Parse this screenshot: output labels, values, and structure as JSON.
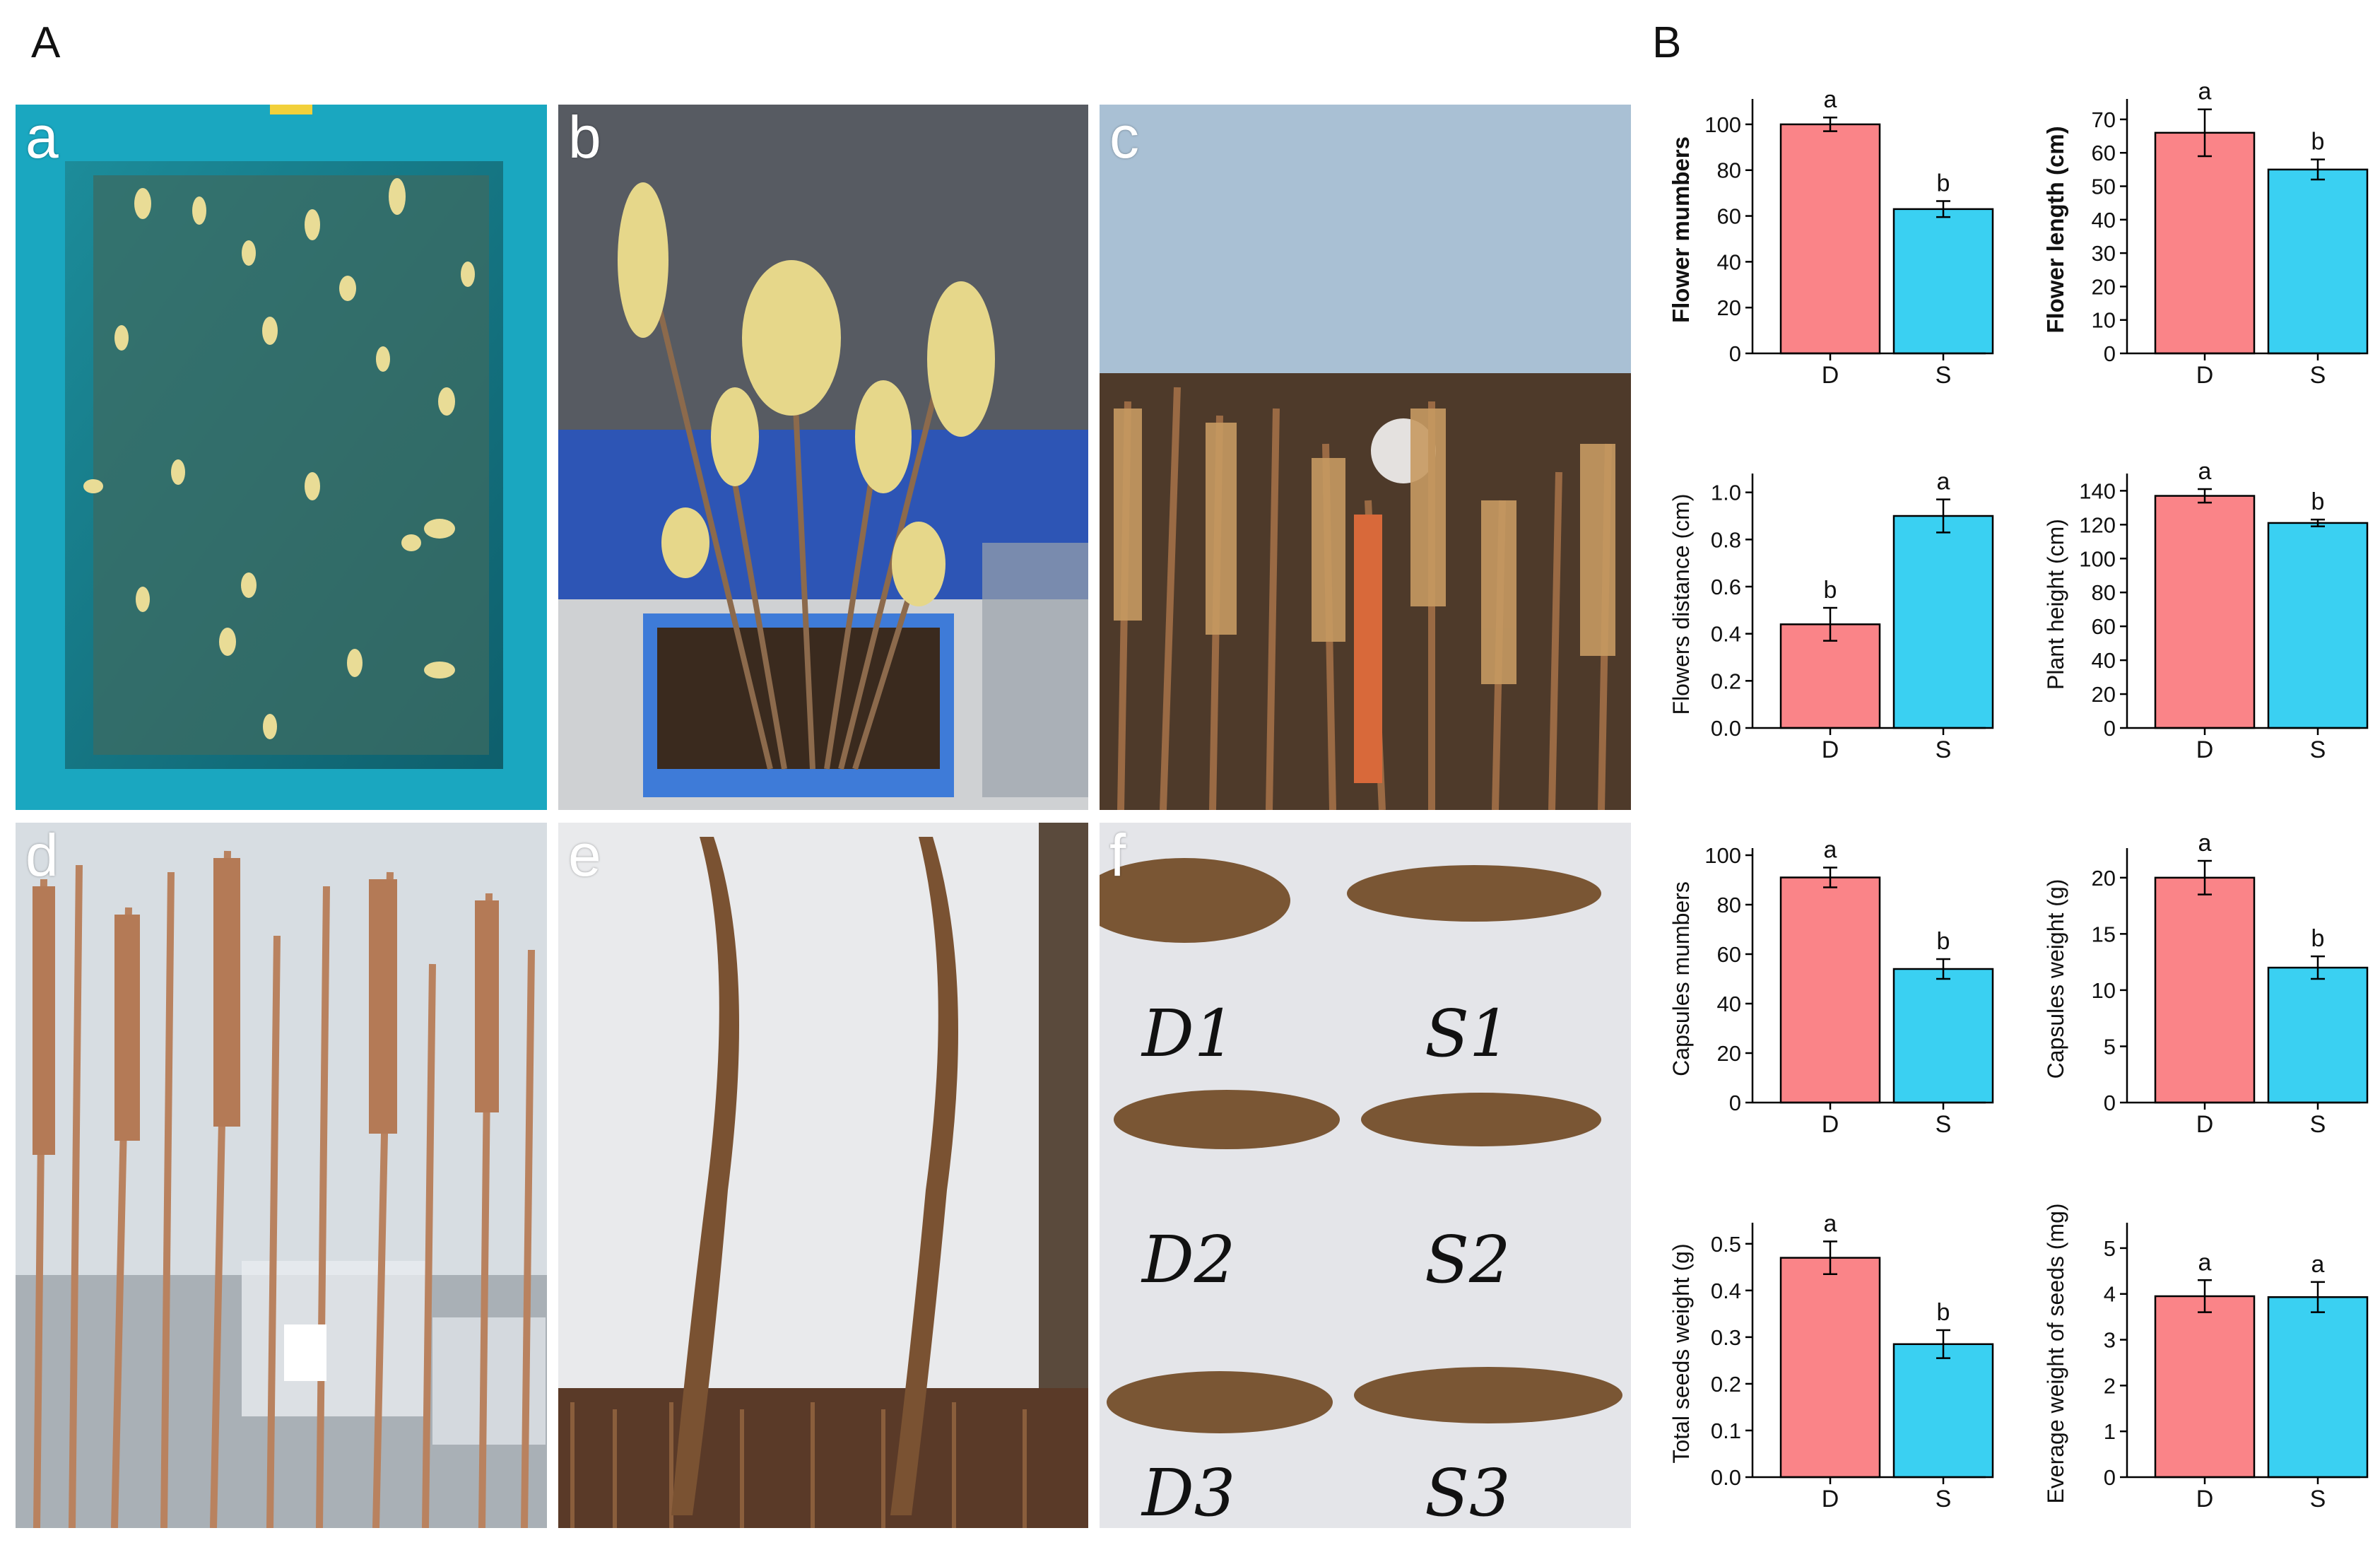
{
  "figure": {
    "panel_a_label": "A",
    "panel_b_label": "B",
    "photos": [
      {
        "key": "a",
        "label": "a"
      },
      {
        "key": "b",
        "label": "b"
      },
      {
        "key": "c",
        "label": "c"
      },
      {
        "key": "d",
        "label": "d"
      },
      {
        "key": "e",
        "label": "e"
      },
      {
        "key": "f",
        "label": "f"
      }
    ],
    "photo_f_tags": [
      "D1",
      "S1",
      "D2",
      "S2",
      "D3",
      "S3"
    ]
  },
  "colors": {
    "D": "#fa8488",
    "S": "#3ad0f2",
    "axis": "#000000"
  },
  "chart_data": [
    {
      "type": "bar",
      "ylabel": "Flower mumbers",
      "ylabel_bold": true,
      "categories": [
        "D",
        "S"
      ],
      "values": [
        100,
        63
      ],
      "errors": [
        3,
        3.5
      ],
      "letters": [
        "a",
        "b"
      ],
      "ylim": [
        0,
        108
      ],
      "yticks": [
        0,
        20,
        40,
        60,
        80,
        100
      ]
    },
    {
      "type": "bar",
      "ylabel": "Flower length (cm)",
      "ylabel_bold": true,
      "categories": [
        "D",
        "S"
      ],
      "values": [
        66,
        55
      ],
      "errors": [
        7,
        3
      ],
      "letters": [
        "a",
        "b"
      ],
      "ylim": [
        0,
        74
      ],
      "yticks": [
        0,
        10,
        20,
        30,
        40,
        50,
        60,
        70
      ]
    },
    {
      "type": "bar",
      "ylabel": "Flowers distance (cm)",
      "ylabel_bold": false,
      "categories": [
        "D",
        "S"
      ],
      "values": [
        0.44,
        0.9
      ],
      "errors": [
        0.07,
        0.07
      ],
      "letters": [
        "b",
        "a"
      ],
      "ylim": [
        0,
        1.05
      ],
      "yticks": [
        0.0,
        0.2,
        0.4,
        0.6,
        0.8,
        1.0
      ],
      "decimals": 1
    },
    {
      "type": "bar",
      "ylabel": "Plant height (cm)",
      "ylabel_bold": false,
      "categories": [
        "D",
        "S"
      ],
      "values": [
        137,
        121
      ],
      "errors": [
        4,
        2
      ],
      "letters": [
        "a",
        "b"
      ],
      "ylim": [
        0,
        146
      ],
      "yticks": [
        0,
        20,
        40,
        60,
        80,
        100,
        120,
        140
      ]
    },
    {
      "type": "bar",
      "ylabel": "Capsules mumbers",
      "ylabel_bold": false,
      "categories": [
        "D",
        "S"
      ],
      "values": [
        91,
        54
      ],
      "errors": [
        4,
        4
      ],
      "letters": [
        "a",
        "b"
      ],
      "ylim": [
        0,
        100
      ],
      "yticks": [
        0,
        20,
        40,
        60,
        80,
        100
      ]
    },
    {
      "type": "bar",
      "ylabel": "Capsules weight (g)",
      "ylabel_bold": false,
      "categories": [
        "D",
        "S"
      ],
      "values": [
        20,
        12
      ],
      "errors": [
        1.5,
        1
      ],
      "letters": [
        "a",
        "b"
      ],
      "ylim": [
        0,
        22
      ],
      "yticks": [
        0,
        5,
        10,
        15,
        20
      ]
    },
    {
      "type": "bar",
      "ylabel": "Total seeds weight (g)",
      "ylabel_bold": false,
      "categories": [
        "D",
        "S"
      ],
      "values": [
        0.47,
        0.285
      ],
      "errors": [
        0.035,
        0.03
      ],
      "letters": [
        "a",
        "b"
      ],
      "ylim": [
        0,
        0.53
      ],
      "yticks": [
        0.0,
        0.1,
        0.2,
        0.3,
        0.4,
        0.5
      ],
      "decimals": 1
    },
    {
      "type": "bar",
      "ylabel": "Everage weight of seeds (mg)",
      "ylabel_bold": false,
      "categories": [
        "D",
        "S"
      ],
      "values": [
        3.95,
        3.93
      ],
      "errors": [
        0.35,
        0.33
      ],
      "letters": [
        "a",
        "a"
      ],
      "ylim": [
        0,
        5.4
      ],
      "yticks": [
        0,
        1,
        2,
        3,
        4,
        5
      ]
    }
  ]
}
